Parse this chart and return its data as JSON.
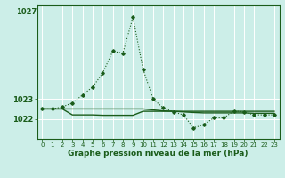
{
  "xlabel": "Graphe pression niveau de la mer (hPa)",
  "background_color": "#cceee8",
  "grid_color": "#ffffff",
  "line_color": "#1a5c1a",
  "hours": [
    0,
    1,
    2,
    3,
    4,
    5,
    6,
    7,
    8,
    9,
    10,
    11,
    12,
    13,
    14,
    15,
    16,
    17,
    18,
    19,
    20,
    21,
    22,
    23
  ],
  "series1_dotted": [
    1022.5,
    1022.5,
    1022.6,
    1022.8,
    1023.2,
    1023.6,
    1024.3,
    1025.4,
    1025.3,
    1027.1,
    1024.5,
    1023.0,
    1022.55,
    1022.35,
    1022.2,
    1021.55,
    1021.7,
    1022.05,
    1022.05,
    1022.4,
    1022.35,
    1022.2,
    1022.2,
    1022.2
  ],
  "series2_solid": [
    1022.5,
    1022.5,
    1022.5,
    1022.5,
    1022.5,
    1022.5,
    1022.5,
    1022.5,
    1022.5,
    1022.5,
    1022.5,
    1022.45,
    1022.4,
    1022.38,
    1022.35,
    1022.32,
    1022.3,
    1022.3,
    1022.3,
    1022.3,
    1022.3,
    1022.28,
    1022.28,
    1022.28
  ],
  "series3_solid_flat": [
    1022.5,
    1022.5,
    1022.5,
    1022.2,
    1022.2,
    1022.2,
    1022.18,
    1022.18,
    1022.18,
    1022.18,
    1022.38,
    1022.38,
    1022.38,
    1022.38,
    1022.38,
    1022.38,
    1022.38,
    1022.38,
    1022.38,
    1022.38,
    1022.38,
    1022.38,
    1022.38,
    1022.38
  ],
  "ylim_min": 1021.0,
  "ylim_max": 1027.7,
  "yticks": [
    1022,
    1023
  ],
  "ytick_top_label": "1027",
  "xticks": [
    0,
    1,
    2,
    3,
    4,
    5,
    6,
    7,
    8,
    9,
    10,
    11,
    12,
    13,
    14,
    15,
    16,
    17,
    18,
    19,
    20,
    21,
    22,
    23
  ]
}
